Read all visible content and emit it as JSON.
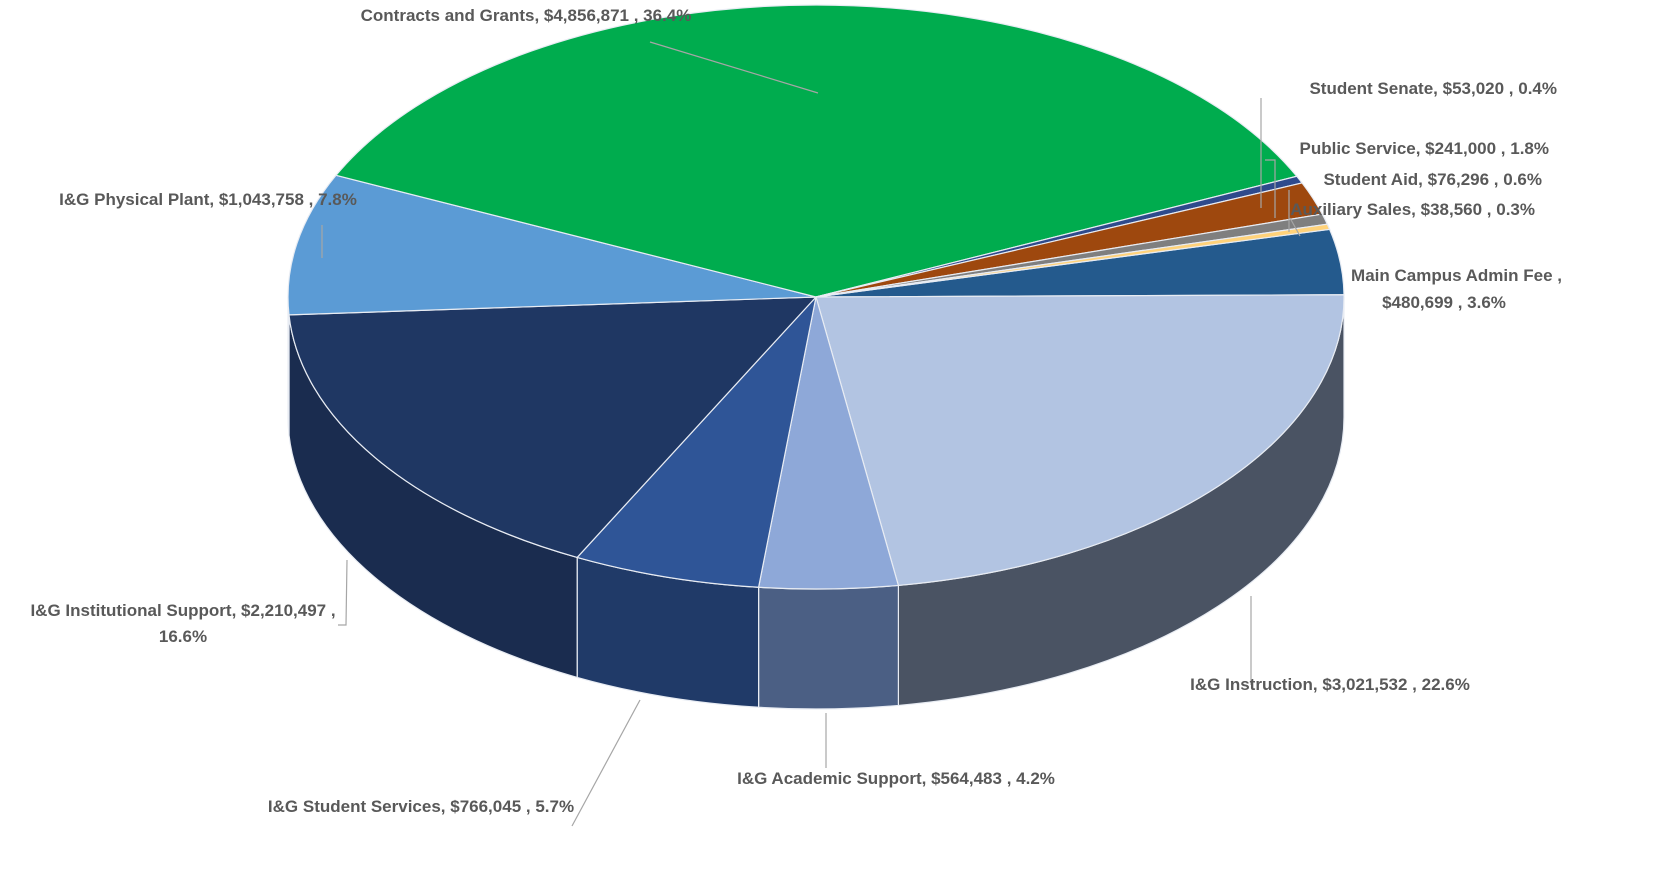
{
  "chart_data": {
    "type": "pie",
    "style": "3d",
    "slices": [
      {
        "label": "Main Campus Admin Fee",
        "value": 480699,
        "percent": "3.6%",
        "value_text": "$480,699",
        "color": "#245a8d",
        "side_color": "#1b446b"
      },
      {
        "label": "I&G Instruction",
        "value": 3021532,
        "percent": "22.6%",
        "value_text": "$3,021,532",
        "color": "#b2c4e2",
        "side_color": "#4a5363"
      },
      {
        "label": "I&G Academic Support",
        "value": 564483,
        "percent": "4.2%",
        "value_text": "$564,483",
        "color": "#8ea8d8",
        "side_color": "#4b5f84"
      },
      {
        "label": "I&G Student Services",
        "value": 766045,
        "percent": "5.7%",
        "value_text": "$766,045",
        "color": "#2f5597",
        "side_color": "#203a68"
      },
      {
        "label": "I&G Institutional Support",
        "value": 2210497,
        "percent": "16.6%",
        "value_text": "$2,210,497",
        "color": "#1f3763",
        "side_color": "#1a2c4f"
      },
      {
        "label": "I&G Physical Plant",
        "value": 1043758,
        "percent": "7.8%",
        "value_text": "$1,043,758",
        "color": "#5b9bd5",
        "side_color": "#3f73a3"
      },
      {
        "label": "Contracts and Grants",
        "value": 4856871,
        "percent": "36.4%",
        "value_text": "$4,856,871",
        "color": "#00ac4e",
        "side_color": "#007a38"
      },
      {
        "label": "Student Senate",
        "value": 53020,
        "percent": "0.4%",
        "value_text": "$53,020",
        "color": "#2e4a8c",
        "side_color": "#22366a"
      },
      {
        "label": "Public Service",
        "value": 241000,
        "percent": "1.8%",
        "value_text": "$241,000",
        "color": "#9e480e",
        "side_color": "#6f330a"
      },
      {
        "label": "Student Aid",
        "value": 76296,
        "percent": "0.6%",
        "value_text": "$76,296",
        "color": "#7f7f7f",
        "side_color": "#5a5a5a"
      },
      {
        "label": "Auxiliary Sales",
        "value": 38560,
        "percent": "0.3%",
        "value_text": "$38,560",
        "color": "#ffd27a",
        "side_color": "#c9a35a"
      }
    ],
    "data_labels": [
      {
        "slice": "Contracts and Grants",
        "lines": [
          "Contracts and Grants,  $4,856,871 , 36.4%"
        ]
      },
      {
        "slice": "Student Senate",
        "lines": [
          "Student Senate,  $53,020 , 0.4%"
        ]
      },
      {
        "slice": "Public Service",
        "lines": [
          "Public Service,  $241,000 , 1.8%"
        ]
      },
      {
        "slice": "Student Aid",
        "lines": [
          "Student Aid,  $76,296 , 0.6%"
        ]
      },
      {
        "slice": "Auxiliary Sales",
        "lines": [
          "Auxiliary Sales,  $38,560 , 0.3%"
        ]
      },
      {
        "slice": "Main Campus Admin Fee",
        "lines": [
          "Main Campus Admin Fee ,",
          "$480,699  , 3.6%"
        ]
      },
      {
        "slice": "I&G Physical Plant",
        "lines": [
          "I&G Physical Plant,  $1,043,758 , 7.8%"
        ]
      },
      {
        "slice": "I&G Institutional Support",
        "lines": [
          "I&G Institutional Support,  $2,210,497 ,",
          "16.6%"
        ]
      },
      {
        "slice": "I&G Instruction",
        "lines": [
          "I&G Instruction,  $3,021,532 , 22.6%"
        ]
      },
      {
        "slice": "I&G Academic Support",
        "lines": [
          "I&G Academic Support,  $564,483 , 4.2%"
        ]
      },
      {
        "slice": "I&G Student Services",
        "lines": [
          "I&G Student Services,  $766,045 , 5.7%"
        ]
      }
    ],
    "title": "",
    "legend": "none"
  }
}
